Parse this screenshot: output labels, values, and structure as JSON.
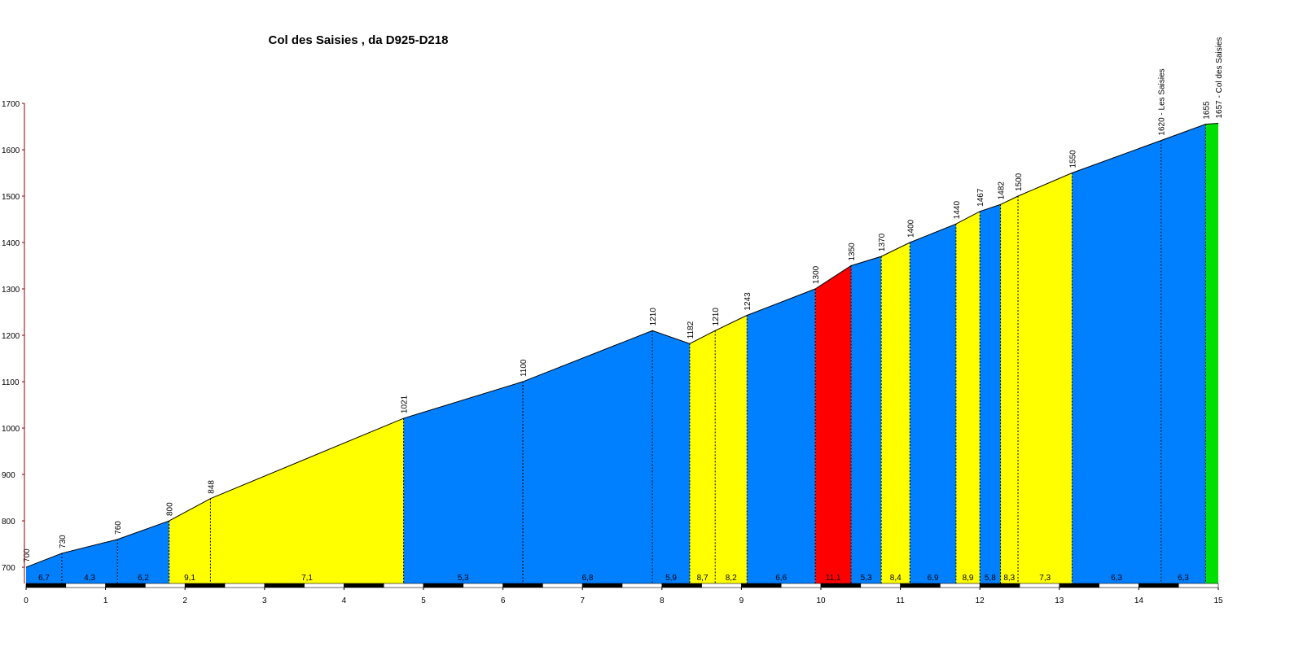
{
  "chart_data": {
    "type": "area",
    "title": "Col des Saisies , da D925-D218",
    "xlabel": "",
    "ylabel": "",
    "xlim": [
      0,
      15
    ],
    "ylim": [
      665,
      1700
    ],
    "xticks": [
      0,
      1,
      2,
      3,
      4,
      5,
      6,
      7,
      8,
      9,
      10,
      11,
      12,
      13,
      14,
      15
    ],
    "yticks": [
      700,
      800,
      900,
      1000,
      1100,
      1200,
      1300,
      1400,
      1500,
      1600,
      1700
    ],
    "points": [
      {
        "x": 0,
        "y": 700,
        "label": "700"
      },
      {
        "x": 0.45,
        "y": 730,
        "label": "730"
      },
      {
        "x": 1.15,
        "y": 760,
        "label": "760"
      },
      {
        "x": 1.8,
        "y": 800,
        "label": "800"
      },
      {
        "x": 2.32,
        "y": 848,
        "label": "848"
      },
      {
        "x": 4.75,
        "y": 1021,
        "label": "1021"
      },
      {
        "x": 6.25,
        "y": 1100,
        "label": "1100"
      },
      {
        "x": 7.88,
        "y": 1210,
        "label": "1210"
      },
      {
        "x": 8.35,
        "y": 1182,
        "label": "1182"
      },
      {
        "x": 8.67,
        "y": 1210,
        "label": "1210"
      },
      {
        "x": 9.07,
        "y": 1243,
        "label": "1243"
      },
      {
        "x": 9.93,
        "y": 1300,
        "label": "1300"
      },
      {
        "x": 10.38,
        "y": 1350,
        "label": "1350"
      },
      {
        "x": 10.76,
        "y": 1370,
        "label": "1370"
      },
      {
        "x": 11.12,
        "y": 1400,
        "label": "1400"
      },
      {
        "x": 11.7,
        "y": 1440,
        "label": "1440"
      },
      {
        "x": 12.0,
        "y": 1467,
        "label": "1467"
      },
      {
        "x": 12.26,
        "y": 1482,
        "label": "1482"
      },
      {
        "x": 12.48,
        "y": 1500,
        "label": "1500"
      },
      {
        "x": 13.16,
        "y": 1550,
        "label": "1550"
      },
      {
        "x": 14.28,
        "y": 1620,
        "label": "1620 - Les Saisies"
      },
      {
        "x": 14.84,
        "y": 1655,
        "label": "1655"
      },
      {
        "x": 15.0,
        "y": 1657,
        "label": "1657 - Col des Saisies"
      }
    ],
    "segments": [
      {
        "gradient": "6,7",
        "color": "#0080ff"
      },
      {
        "gradient": "4,3",
        "color": "#0080ff"
      },
      {
        "gradient": "6,2",
        "color": "#0080ff"
      },
      {
        "gradient": "9,1",
        "color": "#ffff00"
      },
      {
        "gradient": "7,1",
        "color": "#ffff00"
      },
      {
        "gradient": "5,3",
        "color": "#0080ff"
      },
      {
        "gradient": "6,8",
        "color": "#0080ff"
      },
      {
        "gradient": "5,9",
        "color": "#0080ff"
      },
      {
        "gradient": "8,7",
        "color": "#ffff00"
      },
      {
        "gradient": "8,2",
        "color": "#ffff00"
      },
      {
        "gradient": "6,6",
        "color": "#0080ff"
      },
      {
        "gradient": "11,1",
        "color": "#ff0000"
      },
      {
        "gradient": "5,3",
        "color": "#0080ff"
      },
      {
        "gradient": "8,4",
        "color": "#ffff00"
      },
      {
        "gradient": "6,9",
        "color": "#0080ff"
      },
      {
        "gradient": "8,9",
        "color": "#ffff00"
      },
      {
        "gradient": "5,8",
        "color": "#0080ff"
      },
      {
        "gradient": "8,3",
        "color": "#ffff00"
      },
      {
        "gradient": "7,3",
        "color": "#ffff00"
      },
      {
        "gradient": "6,3",
        "color": "#0080ff"
      },
      {
        "gradient": "6,3",
        "color": "#0080ff"
      },
      {
        "gradient": "",
        "color": "#00e000"
      }
    ],
    "colors": {
      "blue": "#0080ff",
      "yellow": "#ffff00",
      "red": "#ff0000",
      "green": "#00e000",
      "axis": "#8b0000",
      "outline": "#000000"
    }
  }
}
